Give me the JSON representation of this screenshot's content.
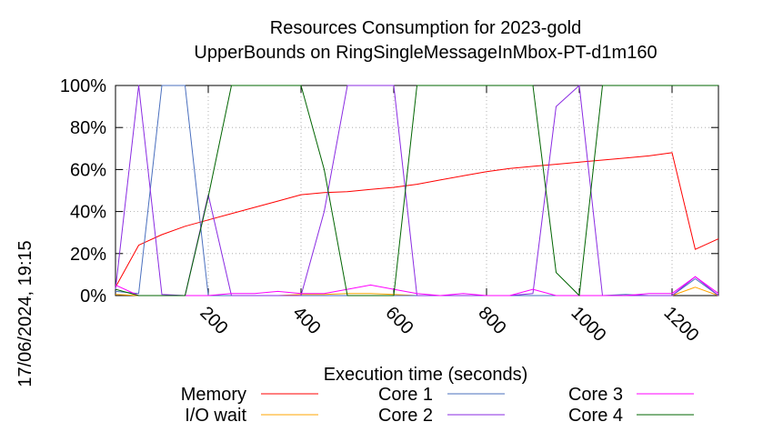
{
  "chart_data": {
    "type": "line",
    "title_line1": "Resources Consumption for 2023-gold",
    "title_line2": "UpperBounds on RingSingleMessageInMbox-PT-d1m160",
    "xlabel": "Execution time (seconds)",
    "ylabel": "",
    "side_label": "17/06/2024, 19:15",
    "xlim": [
      0,
      1300
    ],
    "ylim": [
      0,
      100
    ],
    "x_ticks": [
      200,
      400,
      600,
      800,
      1000,
      1200
    ],
    "y_ticks": [
      0,
      20,
      40,
      60,
      80,
      100
    ],
    "y_tick_labels": [
      "0%",
      "20%",
      "40%",
      "60%",
      "80%",
      "100%"
    ],
    "grid": true,
    "legend_placement": "bottom",
    "series": [
      {
        "name": "Memory",
        "color": "#ff0000",
        "points": [
          [
            0,
            4
          ],
          [
            50,
            24
          ],
          [
            100,
            29
          ],
          [
            150,
            33
          ],
          [
            200,
            36
          ],
          [
            250,
            39
          ],
          [
            300,
            42
          ],
          [
            350,
            45
          ],
          [
            400,
            48
          ],
          [
            450,
            49
          ],
          [
            500,
            49.5
          ],
          [
            550,
            50.5
          ],
          [
            600,
            51.5
          ],
          [
            650,
            53
          ],
          [
            700,
            55
          ],
          [
            750,
            57
          ],
          [
            800,
            59
          ],
          [
            850,
            60.5
          ],
          [
            900,
            61.5
          ],
          [
            950,
            62.5
          ],
          [
            1000,
            63.5
          ],
          [
            1050,
            64.5
          ],
          [
            1100,
            65.5
          ],
          [
            1150,
            66.5
          ],
          [
            1200,
            68
          ],
          [
            1250,
            22
          ],
          [
            1300,
            27
          ]
        ]
      },
      {
        "name": "I/O wait",
        "color": "#ffa500",
        "points": [
          [
            0,
            0.5
          ],
          [
            50,
            0
          ],
          [
            100,
            0
          ],
          [
            150,
            0
          ],
          [
            200,
            0
          ],
          [
            250,
            0
          ],
          [
            300,
            0
          ],
          [
            350,
            0
          ],
          [
            400,
            0.5
          ],
          [
            450,
            0.5
          ],
          [
            500,
            1
          ],
          [
            550,
            1
          ],
          [
            600,
            0.5
          ],
          [
            650,
            0
          ],
          [
            700,
            0
          ],
          [
            750,
            0
          ],
          [
            800,
            0
          ],
          [
            850,
            0
          ],
          [
            900,
            0
          ],
          [
            950,
            0
          ],
          [
            1000,
            0
          ],
          [
            1050,
            0
          ],
          [
            1100,
            0
          ],
          [
            1150,
            0
          ],
          [
            1200,
            0
          ],
          [
            1250,
            4
          ],
          [
            1300,
            0
          ]
        ]
      },
      {
        "name": "Core 1",
        "color": "#4a6fbe",
        "points": [
          [
            0,
            2
          ],
          [
            50,
            1
          ],
          [
            100,
            100
          ],
          [
            150,
            100
          ],
          [
            200,
            0
          ],
          [
            250,
            0
          ],
          [
            300,
            0
          ],
          [
            350,
            0
          ],
          [
            400,
            0
          ],
          [
            450,
            0
          ],
          [
            500,
            0
          ],
          [
            550,
            0
          ],
          [
            600,
            0
          ],
          [
            650,
            0
          ],
          [
            700,
            0
          ],
          [
            750,
            0
          ],
          [
            800,
            0
          ],
          [
            850,
            0
          ],
          [
            900,
            0
          ],
          [
            950,
            0
          ],
          [
            1000,
            0
          ],
          [
            1050,
            0
          ],
          [
            1100,
            0.5
          ],
          [
            1150,
            0
          ],
          [
            1200,
            0
          ],
          [
            1250,
            8
          ],
          [
            1300,
            0
          ]
        ]
      },
      {
        "name": "Core 2",
        "color": "#8a2be2",
        "points": [
          [
            0,
            3
          ],
          [
            50,
            100
          ],
          [
            100,
            0.5
          ],
          [
            150,
            0
          ],
          [
            200,
            48
          ],
          [
            250,
            0
          ],
          [
            300,
            0
          ],
          [
            350,
            0
          ],
          [
            400,
            0
          ],
          [
            450,
            40
          ],
          [
            500,
            100
          ],
          [
            550,
            100
          ],
          [
            600,
            100
          ],
          [
            650,
            0
          ],
          [
            700,
            0
          ],
          [
            750,
            0
          ],
          [
            800,
            0
          ],
          [
            850,
            0
          ],
          [
            900,
            1
          ],
          [
            950,
            90
          ],
          [
            1000,
            100
          ],
          [
            1050,
            0
          ],
          [
            1100,
            0
          ],
          [
            1150,
            0
          ],
          [
            1200,
            0
          ],
          [
            1250,
            9
          ],
          [
            1300,
            0
          ]
        ]
      },
      {
        "name": "Core 3",
        "color": "#ff00ff",
        "points": [
          [
            0,
            5
          ],
          [
            50,
            0
          ],
          [
            100,
            0
          ],
          [
            150,
            0
          ],
          [
            200,
            0
          ],
          [
            250,
            1
          ],
          [
            300,
            1
          ],
          [
            350,
            2
          ],
          [
            400,
            1
          ],
          [
            450,
            1
          ],
          [
            500,
            3
          ],
          [
            550,
            5
          ],
          [
            600,
            3
          ],
          [
            650,
            1
          ],
          [
            700,
            0
          ],
          [
            750,
            1
          ],
          [
            800,
            0
          ],
          [
            850,
            0
          ],
          [
            900,
            3
          ],
          [
            950,
            0
          ],
          [
            1000,
            0
          ],
          [
            1050,
            0
          ],
          [
            1100,
            0
          ],
          [
            1150,
            1
          ],
          [
            1200,
            1
          ],
          [
            1250,
            9
          ],
          [
            1300,
            1
          ]
        ]
      },
      {
        "name": "Core 4",
        "color": "#006400",
        "points": [
          [
            0,
            3
          ],
          [
            50,
            0
          ],
          [
            100,
            0
          ],
          [
            150,
            0
          ],
          [
            200,
            47
          ],
          [
            250,
            100
          ],
          [
            300,
            100
          ],
          [
            350,
            100
          ],
          [
            400,
            100
          ],
          [
            450,
            60
          ],
          [
            500,
            0
          ],
          [
            550,
            0
          ],
          [
            600,
            0
          ],
          [
            650,
            100
          ],
          [
            700,
            100
          ],
          [
            750,
            100
          ],
          [
            800,
            100
          ],
          [
            850,
            100
          ],
          [
            900,
            100
          ],
          [
            950,
            11
          ],
          [
            1000,
            0
          ],
          [
            1050,
            100
          ],
          [
            1100,
            100
          ],
          [
            1150,
            100
          ],
          [
            1200,
            100
          ],
          [
            1250,
            100
          ],
          [
            1300,
            100
          ]
        ]
      }
    ]
  }
}
